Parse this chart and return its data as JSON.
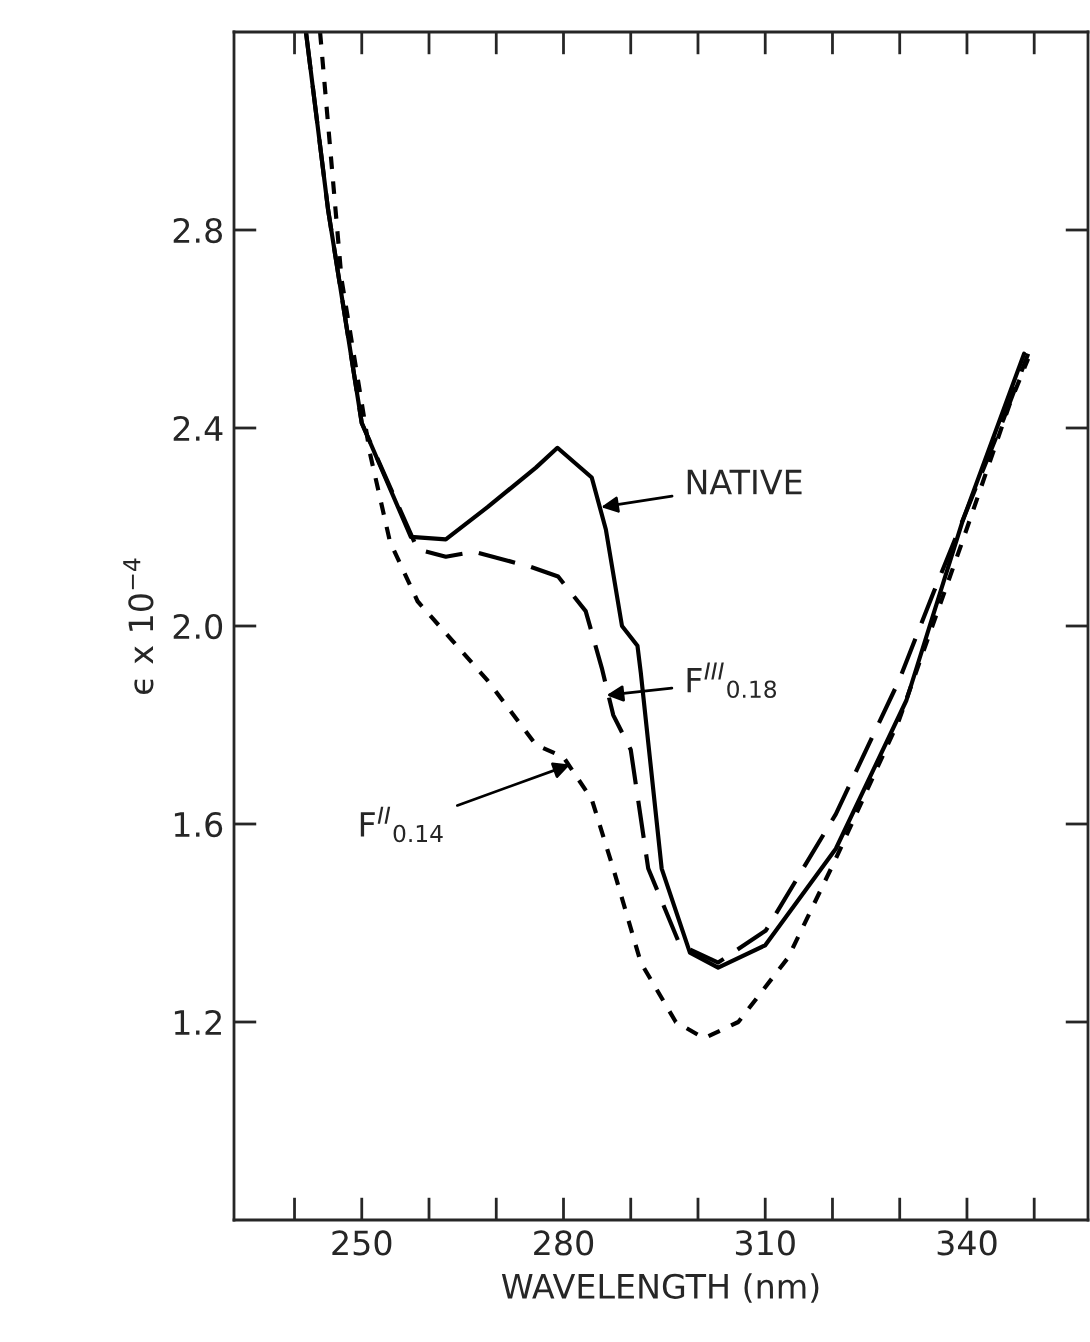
{
  "chart_data": {
    "type": "line",
    "xlabel": "WAVELENGTH (nm)",
    "ylabel": "ϵ x 10$^{−4}$",
    "xlim": [
      231,
      358
    ],
    "ylim": [
      0.8,
      3.2
    ],
    "xticks": [
      {
        "value": 240,
        "label": null
      },
      250,
      {
        "value": 260,
        "label": null
      },
      {
        "value": 270,
        "label": null
      },
      280,
      {
        "value": 290,
        "label": null
      },
      {
        "value": 300,
        "label": null
      },
      310,
      {
        "value": 320,
        "label": null
      },
      {
        "value": 330,
        "label": null
      },
      340,
      {
        "value": 350,
        "label": null
      }
    ],
    "yticks": [
      1.2,
      1.6,
      {
        "value": 2.0,
        "label": "2.0"
      },
      2.4,
      2.8
    ],
    "grid": false,
    "legend": false,
    "series": [
      {
        "color": "#000000",
        "line_style": "solid",
        "x": [
          241.7,
          245,
          250,
          257.3,
          262.5,
          268.7,
          275.9,
          279.1,
          284.2,
          286.3,
          288.7,
          291,
          291.5,
          294.6,
          298.8,
          303,
          310,
          320.5,
          331,
          339.3,
          348.5
        ],
        "values": [
          3.2,
          2.84,
          2.41,
          2.18,
          2.175,
          2.24,
          2.32,
          2.36,
          2.3,
          2.195,
          2.0,
          1.96,
          1.905,
          1.51,
          1.34,
          1.31,
          1.355,
          1.55,
          1.85,
          2.21,
          2.55
        ]
      },
      {
        "color": "#000000",
        "line_style": "dashed",
        "x": [
          241.7,
          245,
          250,
          258.3,
          262.5,
          266.7,
          275,
          279.2,
          283.3,
          285.7,
          287.4,
          290,
          292.6,
          297.3,
          303,
          310.1,
          320.5,
          329.9,
          335.1,
          345.5,
          349.1
        ],
        "values": [
          3.2,
          2.84,
          2.41,
          2.155,
          2.14,
          2.15,
          2.12,
          2.1,
          2.03,
          1.915,
          1.82,
          1.75,
          1.51,
          1.356,
          1.32,
          1.385,
          1.62,
          1.89,
          2.07,
          2.42,
          2.55
        ]
      },
      {
        "color": "#000000",
        "line_style": "dotted",
        "x": [
          243.8,
          247,
          251.2,
          254.2,
          258.3,
          263.5,
          268.7,
          275.9,
          280,
          284.2,
          287.4,
          291.5,
          296.7,
          300.9,
          306,
          313.4,
          320.5,
          329.9,
          339.3,
          346.4,
          349.1
        ],
        "values": [
          3.2,
          2.7,
          2.35,
          2.17,
          2.05,
          1.97,
          1.89,
          1.76,
          1.735,
          1.65,
          1.51,
          1.32,
          1.2,
          1.167,
          1.2,
          1.33,
          1.53,
          1.81,
          2.17,
          2.45,
          2.54
        ]
      }
    ],
    "annotations": [
      {
        "text": "NATIVE",
        "x": 285.6,
        "y": 2.24
      },
      {
        "text": "F$^{III}$$_{0.18}$",
        "x": 286.4,
        "y": 1.86
      },
      {
        "text": "F$^{II}$$_{0.14}$",
        "x": 281,
        "y": 1.72
      }
    ]
  }
}
